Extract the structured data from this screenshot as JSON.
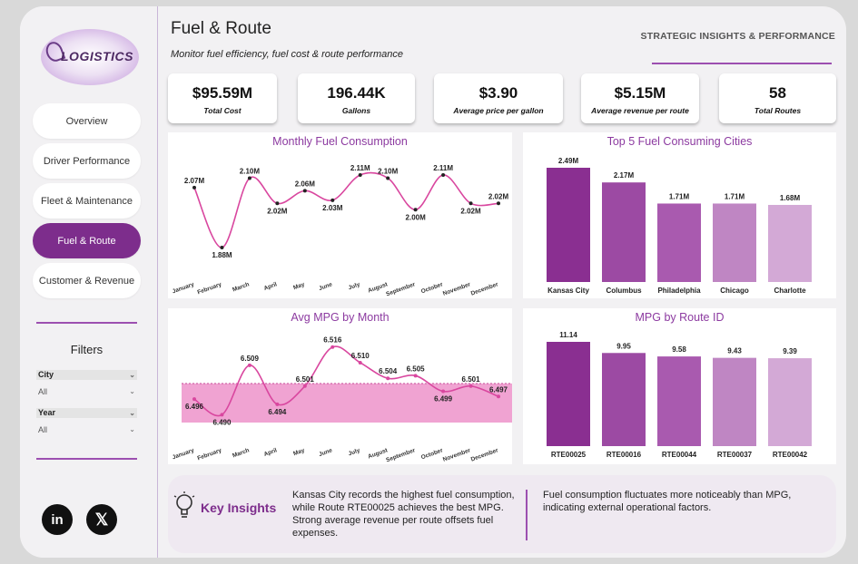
{
  "brand": {
    "logo_text": "LOGISTICS"
  },
  "sidebar": {
    "nav": [
      {
        "label": "Overview",
        "active": false
      },
      {
        "label": "Driver Performance",
        "active": false
      },
      {
        "label": "Fleet & Maintenance",
        "active": false
      },
      {
        "label": "Fuel & Route",
        "active": true
      },
      {
        "label": "Customer & Revenue",
        "active": false
      }
    ],
    "filters_title": "Filters",
    "filters": [
      {
        "label": "City",
        "value": "All"
      },
      {
        "label": "Year",
        "value": "All"
      }
    ],
    "social": [
      {
        "name": "linkedin",
        "glyph": "in"
      },
      {
        "name": "x",
        "glyph": "𝕏"
      }
    ]
  },
  "header": {
    "title": "Fuel & Route",
    "subtitle": "Monitor fuel efficiency, fuel cost & route performance",
    "right_label": "STRATEGIC INSIGHTS & PERFORMANCE"
  },
  "kpis": [
    {
      "value": "$95.59M",
      "label": "Total Cost"
    },
    {
      "value": "196.44K",
      "label": "Gallons"
    },
    {
      "value": "$3.90",
      "label": "Average price per gallon"
    },
    {
      "value": "$5.15M",
      "label": "Average revenue per route"
    },
    {
      "value": "58",
      "label": "Total Routes"
    }
  ],
  "colors": {
    "accent": "#7d2d8c",
    "line": "#d9479f",
    "band": "#f0a3d2",
    "bars": [
      "#8a2f91",
      "#9c4aa3",
      "#a95aaf",
      "#bf86c3",
      "#d3a9d6"
    ]
  },
  "chart_data": [
    {
      "id": "monthly_fuel",
      "type": "line",
      "title": "Monthly Fuel Consumption",
      "categories": [
        "January",
        "February",
        "March",
        "April",
        "May",
        "June",
        "July",
        "August",
        "September",
        "October",
        "November",
        "December"
      ],
      "values": [
        2.07,
        1.88,
        2.1,
        2.02,
        2.06,
        2.03,
        2.11,
        2.1,
        2.0,
        2.11,
        2.02,
        2.02
      ],
      "labels": [
        "2.07M",
        "1.88M",
        "2.10M",
        "2.02M",
        "2.06M",
        "2.03M",
        "2.11M",
        "2.10M",
        "2.00M",
        "2.11M",
        "2.02M",
        "2.02M"
      ],
      "ylim": [
        1.86,
        2.13
      ]
    },
    {
      "id": "top_cities",
      "type": "bar",
      "title": "Top 5 Fuel Consuming Cities",
      "categories": [
        "Kansas City",
        "Columbus",
        "Philadelphia",
        "Chicago",
        "Charlotte"
      ],
      "values": [
        2.49,
        2.17,
        1.71,
        1.71,
        1.68
      ],
      "labels": [
        "2.49M",
        "2.17M",
        "1.71M",
        "1.71M",
        "1.68M"
      ],
      "ylim": [
        0,
        2.49
      ]
    },
    {
      "id": "avg_mpg",
      "type": "line",
      "title": "Avg MPG by Month",
      "categories": [
        "January",
        "February",
        "March",
        "April",
        "May",
        "June",
        "July",
        "August",
        "September",
        "October",
        "November",
        "December"
      ],
      "values": [
        6.496,
        6.49,
        6.509,
        6.494,
        6.501,
        6.516,
        6.51,
        6.504,
        6.505,
        6.499,
        6.501,
        6.497
      ],
      "labels": [
        "6.496",
        "6.490",
        "6.509",
        "6.494",
        "6.501",
        "6.516",
        "6.510",
        "6.504",
        "6.505",
        "6.499",
        "6.501",
        "6.497"
      ],
      "ylim": [
        6.487,
        6.518
      ],
      "band": [
        6.487,
        6.502
      ]
    },
    {
      "id": "mpg_route",
      "type": "bar",
      "title": "MPG by Route ID",
      "categories": [
        "RTE00025",
        "RTE00016",
        "RTE00044",
        "RTE00037",
        "RTE00042"
      ],
      "values": [
        11.14,
        9.95,
        9.58,
        9.43,
        9.39
      ],
      "labels": [
        "11.14",
        "9.95",
        "9.58",
        "9.43",
        "9.39"
      ],
      "ylim": [
        0,
        11.14
      ]
    }
  ],
  "insights": {
    "title": "Key Insights",
    "left": "Kansas City records the highest fuel consumption, while Route RTE00025 achieves the best MPG. Strong average revenue per route offsets fuel expenses.",
    "right": "Fuel consumption fluctuates more noticeably than MPG, indicating external operational factors."
  }
}
